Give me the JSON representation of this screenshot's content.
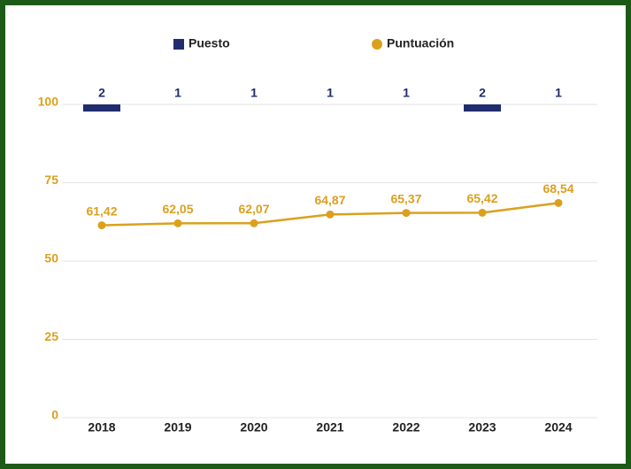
{
  "chart_data": {
    "type": "line",
    "categories": [
      "2018",
      "2019",
      "2020",
      "2021",
      "2022",
      "2023",
      "2024"
    ],
    "series": [
      {
        "name": "Puesto",
        "type": "bar",
        "color": "#1f2d6e",
        "axis": "y2",
        "values": [
          2,
          1,
          1,
          1,
          1,
          2,
          1
        ]
      },
      {
        "name": "Puntuación",
        "type": "line",
        "color": "#dba01e",
        "values": [
          61.42,
          62.05,
          62.07,
          64.87,
          65.37,
          65.42,
          68.54
        ],
        "value_labels": [
          "61,42",
          "62,05",
          "62,07",
          "64,87",
          "65,37",
          "65,42",
          "68,54"
        ]
      }
    ],
    "ylim": [
      0,
      100
    ],
    "yticks": [
      0,
      25,
      50,
      75,
      100
    ],
    "y2lim": [
      1,
      45
    ],
    "y2_inverted": true,
    "grid": true,
    "legend": "top"
  }
}
